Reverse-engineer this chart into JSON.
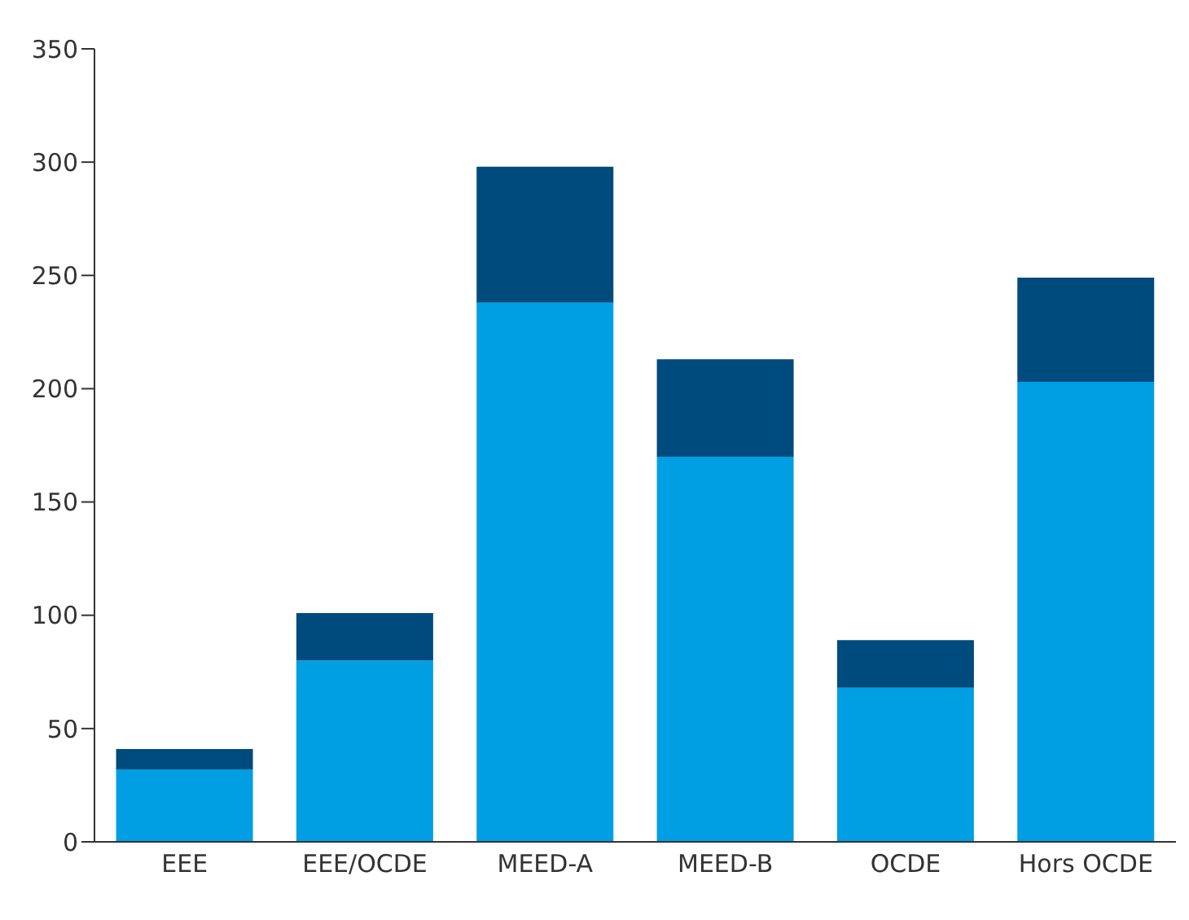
{
  "chart_data": {
    "type": "bar",
    "stacked": true,
    "categories": [
      "EEE",
      "EEE/OCDE",
      "MEED-A",
      "MEED-B",
      "OCDE",
      "Hors OCDE"
    ],
    "series": [
      {
        "color": "#009fe3",
        "values": [
          32,
          80,
          238,
          170,
          68,
          203
        ]
      },
      {
        "color": "#004b7d",
        "values": [
          9,
          21,
          60,
          43,
          21,
          46
        ]
      }
    ],
    "ylim": [
      0,
      350
    ],
    "yticks": [
      0,
      50,
      100,
      150,
      200,
      250,
      300,
      350
    ],
    "grid": false,
    "legend": false
  }
}
